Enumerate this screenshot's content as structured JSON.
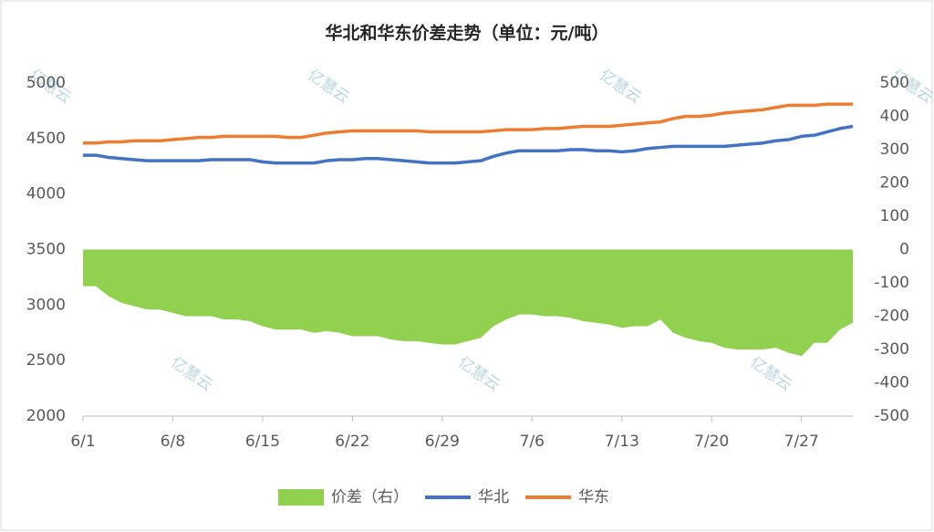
{
  "chart_data": {
    "type": "line",
    "title": "华北和华东价差走势（单位：元/吨）",
    "watermark": "亿慧云",
    "categories": [
      "6/1",
      null,
      null,
      null,
      null,
      null,
      null,
      "6/8",
      null,
      null,
      null,
      null,
      null,
      null,
      "6/15",
      null,
      null,
      null,
      null,
      null,
      null,
      "6/22",
      null,
      null,
      null,
      null,
      null,
      null,
      "6/29",
      null,
      null,
      null,
      null,
      null,
      null,
      "7/6",
      null,
      null,
      null,
      null,
      null,
      null,
      "7/13",
      null,
      null,
      null,
      null,
      null,
      null,
      "7/20",
      null,
      null,
      null,
      null,
      null,
      null,
      "7/27",
      null,
      null,
      null,
      null
    ],
    "ylim": [
      2000,
      5000
    ],
    "yticks": [
      2000,
      2500,
      3000,
      3500,
      4000,
      4500,
      5000
    ],
    "y2lim": [
      -500,
      500
    ],
    "y2ticks": [
      -500,
      -400,
      -300,
      -200,
      -100,
      0,
      100,
      200,
      300,
      400,
      500
    ],
    "legend": "bottom",
    "series": [
      {
        "name": "价差（右）",
        "type": "area",
        "axis": "y2",
        "color": "#92d050",
        "values": [
          -110,
          -110,
          -140,
          -160,
          -170,
          -180,
          -180,
          -190,
          -200,
          -200,
          -200,
          -210,
          -210,
          -215,
          -230,
          -240,
          -240,
          -240,
          -250,
          -245,
          -250,
          -260,
          -260,
          -260,
          -270,
          -275,
          -275,
          -280,
          -285,
          -285,
          -275,
          -265,
          -230,
          -210,
          -195,
          -195,
          -200,
          -200,
          -205,
          -215,
          -220,
          -225,
          -235,
          -230,
          -230,
          -210,
          -250,
          -265,
          -275,
          -280,
          -295,
          -300,
          -300,
          -300,
          -295,
          -310,
          -320,
          -280,
          -280,
          -240,
          -220
        ]
      },
      {
        "name": "华北",
        "color": "#4472c4",
        "values": [
          4350,
          4350,
          4330,
          4320,
          4310,
          4300,
          4300,
          4300,
          4300,
          4300,
          4310,
          4310,
          4310,
          4310,
          4290,
          4280,
          4280,
          4280,
          4280,
          4300,
          4310,
          4310,
          4320,
          4320,
          4310,
          4300,
          4290,
          4280,
          4280,
          4280,
          4290,
          4300,
          4340,
          4370,
          4390,
          4390,
          4390,
          4390,
          4400,
          4400,
          4390,
          4390,
          4380,
          4390,
          4410,
          4420,
          4430,
          4430,
          4430,
          4430,
          4430,
          4440,
          4450,
          4460,
          4480,
          4490,
          4520,
          4530,
          4560,
          4590,
          4610
        ]
      },
      {
        "name": "华东",
        "color": "#ed7d31",
        "values": [
          4460,
          4460,
          4470,
          4470,
          4480,
          4480,
          4480,
          4490,
          4500,
          4510,
          4510,
          4520,
          4520,
          4520,
          4520,
          4520,
          4510,
          4510,
          4530,
          4550,
          4560,
          4570,
          4570,
          4570,
          4570,
          4570,
          4570,
          4560,
          4560,
          4560,
          4560,
          4560,
          4570,
          4580,
          4580,
          4580,
          4590,
          4590,
          4600,
          4610,
          4610,
          4610,
          4620,
          4630,
          4640,
          4650,
          4680,
          4700,
          4700,
          4710,
          4730,
          4740,
          4750,
          4760,
          4780,
          4800,
          4800,
          4800,
          4810,
          4810,
          4810
        ]
      }
    ]
  }
}
